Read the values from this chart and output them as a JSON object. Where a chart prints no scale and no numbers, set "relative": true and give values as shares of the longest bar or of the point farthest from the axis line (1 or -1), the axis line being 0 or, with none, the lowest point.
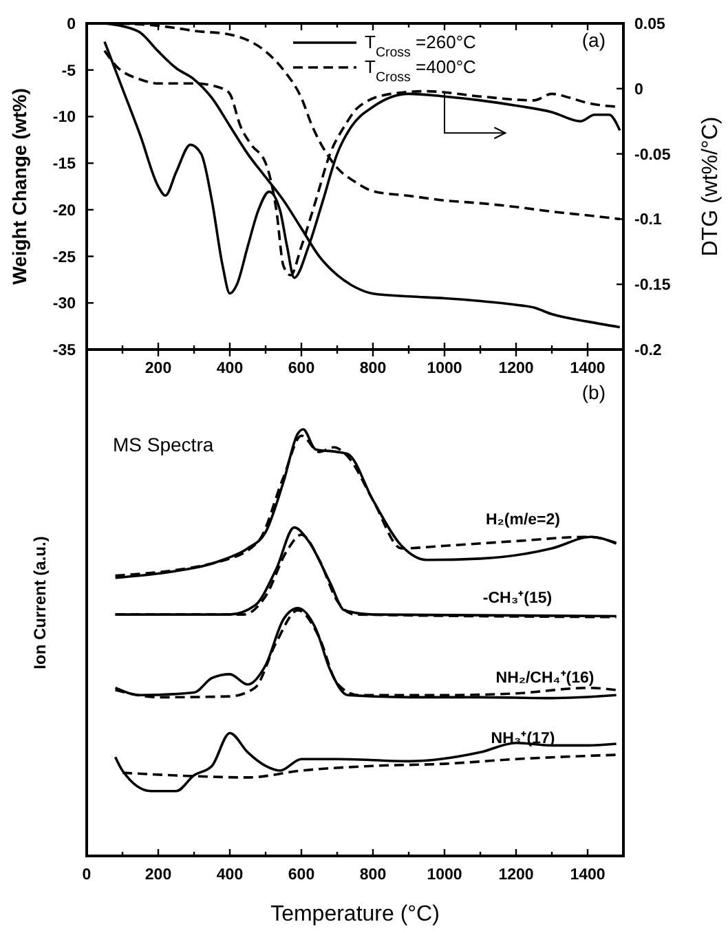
{
  "chart_data": [
    {
      "type": "line",
      "ylabel": "Weight Change (wt%)",
      "y2label": "DTG (wt%/°C)",
      "legend": "top right",
      "marker": "none",
      "annotations": [
        "(a)"
      ],
      "xlim": [
        0,
        1500
      ],
      "xticks": [
        {
          "value": 100,
          "label": null
        },
        200,
        {
          "value": 300,
          "label": null
        },
        400,
        {
          "value": 500,
          "label": null
        },
        600,
        {
          "value": 700,
          "label": null
        },
        800,
        {
          "value": 900,
          "label": null
        },
        1000,
        {
          "value": 1100,
          "label": null
        },
        1200,
        {
          "value": 1300,
          "label": null
        },
        1400
      ],
      "ylim": [
        -35,
        0
      ],
      "yticks": [
        -35,
        -30,
        -25,
        -20,
        -15,
        -10,
        -5,
        0
      ],
      "y2lim": [
        -0.2,
        0.05
      ],
      "y2ticks": [
        -0.2,
        -0.15,
        -0.1,
        -0.05,
        0,
        0.05
      ],
      "series": [
        {
          "name": "T$_{Cross}$ =260°C",
          "color": "#000000",
          "line_style": "solid",
          "x": [
            50,
            100,
            150,
            200,
            250,
            300,
            350,
            400,
            450,
            500,
            550,
            600,
            650,
            700,
            750,
            800,
            900,
            1000,
            1100,
            1200,
            1250,
            1300,
            1400,
            1490
          ],
          "values": [
            0,
            -0.3,
            -1,
            -3,
            -4.8,
            -6,
            -8,
            -11,
            -14,
            -16.5,
            -19,
            -22,
            -25,
            -27,
            -28.3,
            -29,
            -29.3,
            -29.5,
            -29.8,
            -30.2,
            -30.5,
            -31.2,
            -32,
            -32.6
          ]
        },
        {
          "name": "T$_{Cross}$ =400°C",
          "color": "#000000",
          "line_style": "dashed",
          "x": [
            50,
            150,
            250,
            300,
            400,
            450,
            500,
            550,
            600,
            630,
            680,
            700,
            750,
            800,
            900,
            1000,
            1100,
            1200,
            1300,
            1400,
            1490
          ],
          "values": [
            0,
            -0.1,
            -0.5,
            -0.8,
            -1.2,
            -1.8,
            -3,
            -5,
            -8,
            -11,
            -14.5,
            -15.5,
            -17,
            -18,
            -18.5,
            -19,
            -19.3,
            -19.7,
            -20.2,
            -20.6,
            -21
          ]
        },
        {
          "axis": "y2",
          "color": "#000000",
          "line_style": "solid",
          "x": [
            50,
            100,
            150,
            200,
            220,
            250,
            290,
            320,
            350,
            380,
            400,
            420,
            450,
            480,
            510,
            540,
            560,
            580,
            620,
            660,
            700,
            740,
            800,
            900,
            1000,
            1100,
            1200,
            1300,
            1380,
            1420,
            1460,
            1490
          ],
          "values": [
            0.036,
            0,
            -0.036,
            -0.075,
            -0.082,
            -0.064,
            -0.043,
            -0.05,
            -0.086,
            -0.136,
            -0.157,
            -0.15,
            -0.121,
            -0.093,
            -0.079,
            -0.093,
            -0.121,
            -0.145,
            -0.121,
            -0.086,
            -0.05,
            -0.029,
            -0.014,
            -0.004,
            -0.006,
            -0.009,
            -0.013,
            -0.018,
            -0.025,
            -0.02,
            -0.02,
            -0.032
          ]
        },
        {
          "axis": "y2",
          "color": "#000000",
          "line_style": "dashed",
          "x": [
            50,
            80,
            150,
            200,
            300,
            380,
            400,
            430,
            460,
            500,
            530,
            550,
            570,
            600,
            640,
            680,
            720,
            760,
            850,
            950,
            1100,
            1250,
            1300,
            1350,
            1400,
            1490
          ],
          "values": [
            0.029,
            0.018,
            0.007,
            0.004,
            0.004,
            0,
            -0.004,
            -0.029,
            -0.043,
            -0.057,
            -0.093,
            -0.136,
            -0.143,
            -0.121,
            -0.086,
            -0.05,
            -0.029,
            -0.014,
            -0.004,
            -0.002,
            -0.006,
            -0.009,
            -0.004,
            -0.007,
            -0.011,
            -0.014
          ]
        }
      ]
    },
    {
      "type": "line",
      "xlabel": "Temperature (°C)",
      "ylabel": "Ion Current (a.u.)",
      "relative": true,
      "marker": "none",
      "annotations": [
        "(b)",
        "MS Spectra",
        "H₂(m/e=2)",
        "-CH₃⁺(15)",
        "NH₂/CH₄⁺(16)",
        "NH₃⁺(17)"
      ],
      "xlim": [
        0,
        1500
      ],
      "xticks": [
        0,
        {
          "value": 100,
          "label": null
        },
        200,
        {
          "value": 300,
          "label": null
        },
        400,
        {
          "value": 500,
          "label": null
        },
        600,
        {
          "value": 700,
          "label": null
        },
        800,
        {
          "value": 900,
          "label": null
        },
        1000,
        {
          "value": 1100,
          "label": null
        },
        1200,
        {
          "value": 1300,
          "label": null
        },
        1400
      ],
      "series": [
        {
          "color": "#000000",
          "line_style": "solid",
          "x": [
            80,
            200,
            380,
            450,
            500,
            550,
            590,
            605,
            640,
            700,
            730,
            800,
            880,
            950,
            1100,
            1300,
            1410,
            1480
          ],
          "values": [
            0.652,
            0.662,
            0.694,
            0.721,
            0.759,
            0.877,
            0.99,
            1,
            0.953,
            0.947,
            0.942,
            0.834,
            0.727,
            0.694,
            0.697,
            0.721,
            0.748,
            0.732
          ]
        },
        {
          "color": "#000000",
          "line_style": "dashed",
          "x": [
            80,
            380,
            480,
            550,
            600,
            650,
            690,
            730,
            800,
            880,
            1000,
            1200,
            1400,
            1480
          ],
          "values": [
            0.657,
            0.692,
            0.738,
            0.888,
            0.985,
            0.947,
            0.958,
            0.936,
            0.834,
            0.721,
            0.727,
            0.738,
            0.748,
            0.734
          ]
        },
        {
          "color": "#000000",
          "line_style": "solid",
          "x": [
            80,
            400,
            470,
            530,
            580,
            620,
            680,
            720,
            800,
            1480
          ],
          "values": [
            0.566,
            0.566,
            0.587,
            0.673,
            0.77,
            0.738,
            0.641,
            0.576,
            0.566,
            0.562
          ]
        },
        {
          "color": "#000000",
          "line_style": "dashed",
          "x": [
            80,
            440,
            500,
            560,
            600,
            650,
            700,
            750,
            1480
          ],
          "values": [
            0.566,
            0.566,
            0.609,
            0.716,
            0.753,
            0.694,
            0.598,
            0.566,
            0.56
          ]
        },
        {
          "color": "#000000",
          "line_style": "solid",
          "x": [
            80,
            150,
            300,
            350,
            400,
            450,
            500,
            550,
            590,
            640,
            680,
            730,
            900,
            1100,
            1300,
            1480
          ],
          "values": [
            0.394,
            0.377,
            0.383,
            0.417,
            0.426,
            0.402,
            0.447,
            0.555,
            0.581,
            0.533,
            0.437,
            0.377,
            0.372,
            0.372,
            0.37,
            0.377
          ]
        },
        {
          "color": "#000000",
          "line_style": "dashed",
          "x": [
            80,
            200,
            400,
            470,
            530,
            590,
            650,
            700,
            760,
            1000,
            1200,
            1400,
            1480
          ],
          "values": [
            0.389,
            0.372,
            0.374,
            0.394,
            0.501,
            0.576,
            0.512,
            0.404,
            0.377,
            0.377,
            0.381,
            0.394,
            0.389
          ]
        },
        {
          "color": "#000000",
          "line_style": "solid",
          "x": [
            80,
            100,
            180,
            250,
            300,
            350,
            400,
            450,
            500,
            540,
            600,
            700,
            900,
            1100,
            1200,
            1300,
            1400,
            1480
          ],
          "values": [
            0.232,
            0.2,
            0.152,
            0.152,
            0.189,
            0.211,
            0.288,
            0.243,
            0.211,
            0.2,
            0.227,
            0.227,
            0.222,
            0.243,
            0.265,
            0.259,
            0.259,
            0.263
          ]
        },
        {
          "color": "#000000",
          "line_style": "dashed",
          "x": [
            100,
            300,
            450,
            600,
            800,
            1000,
            1200,
            1480
          ],
          "values": [
            0.195,
            0.187,
            0.184,
            0.2,
            0.211,
            0.216,
            0.227,
            0.237
          ]
        }
      ]
    }
  ]
}
